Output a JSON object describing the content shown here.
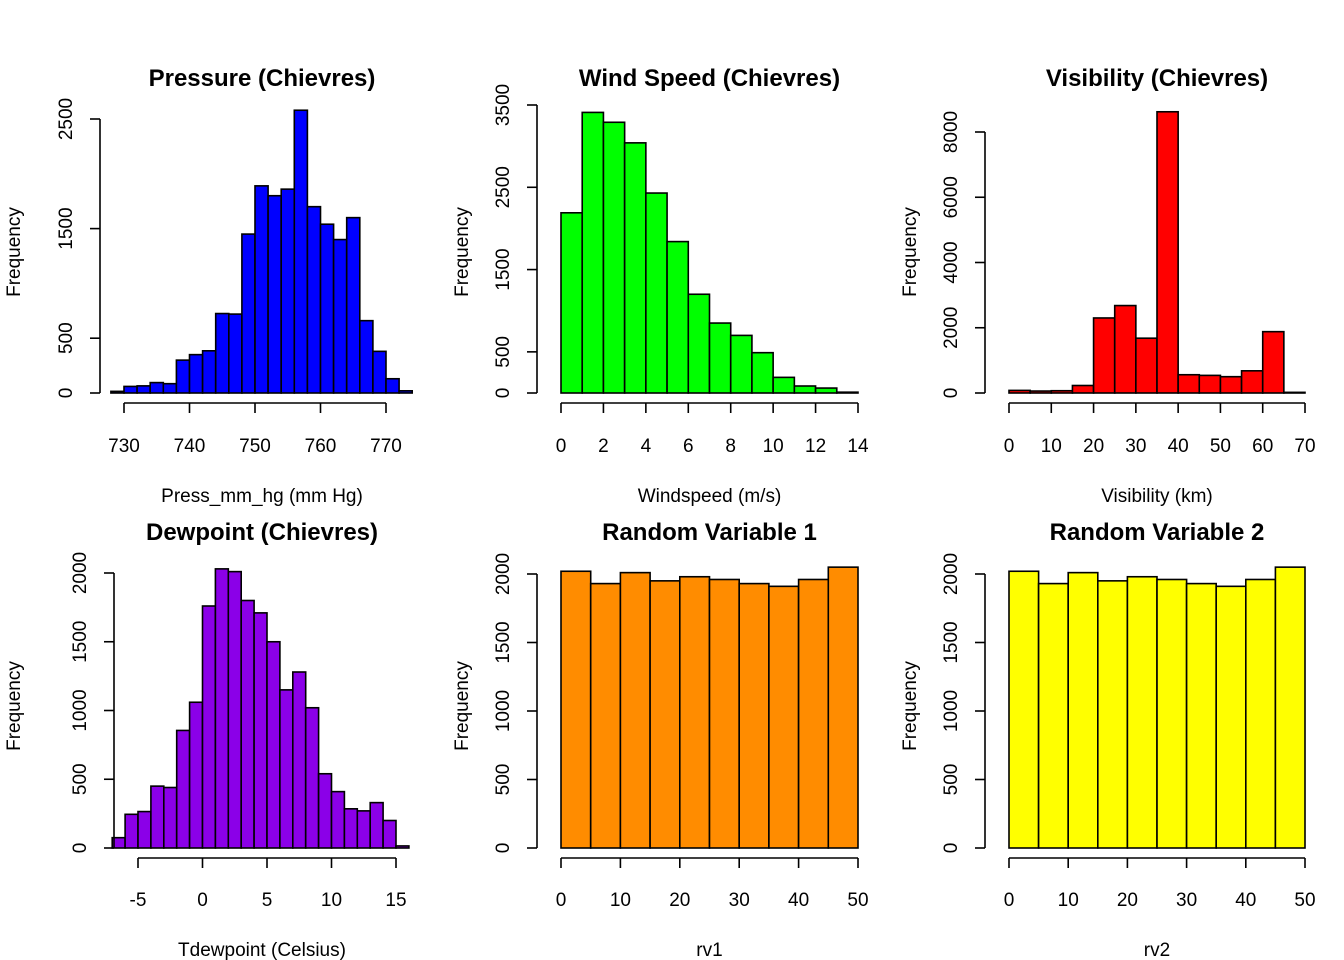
{
  "chart_data": [
    {
      "type": "bar",
      "title": "Pressure (Chievres)",
      "xlabel": "Press_mm_hg (mm Hg)",
      "ylabel": "Frequency",
      "color": "#0000ff",
      "xlim": [
        730,
        770
      ],
      "ylim": [
        0,
        2500
      ],
      "xticks": [
        730,
        740,
        750,
        760,
        770
      ],
      "yticks": [
        0,
        500,
        1500,
        2500
      ],
      "bins": [
        {
          "x0": 728,
          "x1": 730,
          "y": 15
        },
        {
          "x0": 730,
          "x1": 732,
          "y": 60
        },
        {
          "x0": 732,
          "x1": 734,
          "y": 65
        },
        {
          "x0": 734,
          "x1": 736,
          "y": 95
        },
        {
          "x0": 736,
          "x1": 738,
          "y": 85
        },
        {
          "x0": 738,
          "x1": 740,
          "y": 300
        },
        {
          "x0": 740,
          "x1": 742,
          "y": 350
        },
        {
          "x0": 742,
          "x1": 744,
          "y": 385
        },
        {
          "x0": 744,
          "x1": 746,
          "y": 725
        },
        {
          "x0": 746,
          "x1": 748,
          "y": 720
        },
        {
          "x0": 748,
          "x1": 750,
          "y": 1450
        },
        {
          "x0": 750,
          "x1": 752,
          "y": 1890
        },
        {
          "x0": 752,
          "x1": 754,
          "y": 1800
        },
        {
          "x0": 754,
          "x1": 756,
          "y": 1860
        },
        {
          "x0": 756,
          "x1": 758,
          "y": 2580
        },
        {
          "x0": 758,
          "x1": 760,
          "y": 1700
        },
        {
          "x0": 760,
          "x1": 762,
          "y": 1540
        },
        {
          "x0": 762,
          "x1": 764,
          "y": 1400
        },
        {
          "x0": 764,
          "x1": 766,
          "y": 1600
        },
        {
          "x0": 766,
          "x1": 768,
          "y": 660
        },
        {
          "x0": 768,
          "x1": 770,
          "y": 380
        },
        {
          "x0": 770,
          "x1": 772,
          "y": 130
        },
        {
          "x0": 772,
          "x1": 774,
          "y": 20
        }
      ]
    },
    {
      "type": "bar",
      "title": "Wind Speed (Chievres)",
      "xlabel": "Windspeed (m/s)",
      "ylabel": "Frequency",
      "color": "#00ff00",
      "xlim": [
        0,
        14
      ],
      "ylim": [
        0,
        3500
      ],
      "xticks": [
        0,
        2,
        4,
        6,
        8,
        10,
        12,
        14
      ],
      "yticks": [
        0,
        500,
        1500,
        2500,
        3500
      ],
      "bins": [
        {
          "x0": 0,
          "x1": 1,
          "y": 2190
        },
        {
          "x0": 1,
          "x1": 2,
          "y": 3410
        },
        {
          "x0": 2,
          "x1": 3,
          "y": 3290
        },
        {
          "x0": 3,
          "x1": 4,
          "y": 3040
        },
        {
          "x0": 4,
          "x1": 5,
          "y": 2430
        },
        {
          "x0": 5,
          "x1": 6,
          "y": 1840
        },
        {
          "x0": 6,
          "x1": 7,
          "y": 1200
        },
        {
          "x0": 7,
          "x1": 8,
          "y": 850
        },
        {
          "x0": 8,
          "x1": 9,
          "y": 700
        },
        {
          "x0": 9,
          "x1": 10,
          "y": 490
        },
        {
          "x0": 10,
          "x1": 11,
          "y": 190
        },
        {
          "x0": 11,
          "x1": 12,
          "y": 85
        },
        {
          "x0": 12,
          "x1": 13,
          "y": 60
        },
        {
          "x0": 13,
          "x1": 14,
          "y": 10
        }
      ]
    },
    {
      "type": "bar",
      "title": "Visibility (Chievres)",
      "xlabel": "Visibility (km)",
      "ylabel": "Frequency",
      "color": "#ff0000",
      "xlim": [
        0,
        70
      ],
      "ylim": [
        0,
        8000
      ],
      "xticks": [
        0,
        10,
        20,
        30,
        40,
        50,
        60,
        70
      ],
      "yticks": [
        0,
        2000,
        4000,
        6000,
        8000
      ],
      "bins": [
        {
          "x0": 0,
          "x1": 5,
          "y": 80
        },
        {
          "x0": 5,
          "x1": 10,
          "y": 60
        },
        {
          "x0": 10,
          "x1": 15,
          "y": 70
        },
        {
          "x0": 15,
          "x1": 20,
          "y": 230
        },
        {
          "x0": 20,
          "x1": 25,
          "y": 2300
        },
        {
          "x0": 25,
          "x1": 30,
          "y": 2680
        },
        {
          "x0": 30,
          "x1": 35,
          "y": 1680
        },
        {
          "x0": 35,
          "x1": 40,
          "y": 8620
        },
        {
          "x0": 40,
          "x1": 45,
          "y": 560
        },
        {
          "x0": 45,
          "x1": 50,
          "y": 540
        },
        {
          "x0": 50,
          "x1": 55,
          "y": 500
        },
        {
          "x0": 55,
          "x1": 60,
          "y": 680
        },
        {
          "x0": 60,
          "x1": 65,
          "y": 1880
        },
        {
          "x0": 65,
          "x1": 70,
          "y": 20
        }
      ]
    },
    {
      "type": "bar",
      "title": "Dewpoint (Chievres)",
      "xlabel": "Tdewpoint (Celsius)",
      "ylabel": "Frequency",
      "color": "#8b00e8",
      "xlim": [
        -5,
        15
      ],
      "ylim": [
        0,
        2000
      ],
      "xticks": [
        -5,
        0,
        5,
        10,
        15
      ],
      "yticks": [
        0,
        500,
        1000,
        1500,
        2000
      ],
      "bins": [
        {
          "x0": -7,
          "x1": -6,
          "y": 75
        },
        {
          "x0": -6,
          "x1": -5,
          "y": 245
        },
        {
          "x0": -5,
          "x1": -4,
          "y": 265
        },
        {
          "x0": -4,
          "x1": -3,
          "y": 450
        },
        {
          "x0": -3,
          "x1": -2,
          "y": 440
        },
        {
          "x0": -2,
          "x1": -1,
          "y": 855
        },
        {
          "x0": -1,
          "x1": 0,
          "y": 1060
        },
        {
          "x0": 0,
          "x1": 1,
          "y": 1760
        },
        {
          "x0": 1,
          "x1": 2,
          "y": 2030
        },
        {
          "x0": 2,
          "x1": 3,
          "y": 2010
        },
        {
          "x0": 3,
          "x1": 4,
          "y": 1800
        },
        {
          "x0": 4,
          "x1": 5,
          "y": 1710
        },
        {
          "x0": 5,
          "x1": 6,
          "y": 1500
        },
        {
          "x0": 6,
          "x1": 7,
          "y": 1150
        },
        {
          "x0": 7,
          "x1": 8,
          "y": 1280
        },
        {
          "x0": 8,
          "x1": 9,
          "y": 1020
        },
        {
          "x0": 9,
          "x1": 10,
          "y": 540
        },
        {
          "x0": 10,
          "x1": 11,
          "y": 410
        },
        {
          "x0": 11,
          "x1": 12,
          "y": 285
        },
        {
          "x0": 12,
          "x1": 13,
          "y": 270
        },
        {
          "x0": 13,
          "x1": 14,
          "y": 330
        },
        {
          "x0": 14,
          "x1": 15,
          "y": 200
        },
        {
          "x0": 15,
          "x1": 16,
          "y": 15
        }
      ]
    },
    {
      "type": "bar",
      "title": "Random Variable 1",
      "xlabel": "rv1",
      "ylabel": "Frequency",
      "color": "#ff8c00",
      "xlim": [
        0,
        50
      ],
      "ylim": [
        0,
        2000
      ],
      "xticks": [
        0,
        10,
        20,
        30,
        40,
        50
      ],
      "yticks": [
        0,
        500,
        1000,
        1500,
        2000
      ],
      "bins": [
        {
          "x0": 0,
          "x1": 5,
          "y": 2020
        },
        {
          "x0": 5,
          "x1": 10,
          "y": 1930
        },
        {
          "x0": 10,
          "x1": 15,
          "y": 2010
        },
        {
          "x0": 15,
          "x1": 20,
          "y": 1950
        },
        {
          "x0": 20,
          "x1": 25,
          "y": 1980
        },
        {
          "x0": 25,
          "x1": 30,
          "y": 1960
        },
        {
          "x0": 30,
          "x1": 35,
          "y": 1930
        },
        {
          "x0": 35,
          "x1": 40,
          "y": 1910
        },
        {
          "x0": 40,
          "x1": 45,
          "y": 1960
        },
        {
          "x0": 45,
          "x1": 50,
          "y": 2050
        }
      ]
    },
    {
      "type": "bar",
      "title": "Random Variable 2",
      "xlabel": "rv2",
      "ylabel": "Frequency",
      "color": "#ffff00",
      "xlim": [
        0,
        50
      ],
      "ylim": [
        0,
        2000
      ],
      "xticks": [
        0,
        10,
        20,
        30,
        40,
        50
      ],
      "yticks": [
        0,
        500,
        1000,
        1500,
        2000
      ],
      "bins": [
        {
          "x0": 0,
          "x1": 5,
          "y": 2020
        },
        {
          "x0": 5,
          "x1": 10,
          "y": 1930
        },
        {
          "x0": 10,
          "x1": 15,
          "y": 2010
        },
        {
          "x0": 15,
          "x1": 20,
          "y": 1950
        },
        {
          "x0": 20,
          "x1": 25,
          "y": 1980
        },
        {
          "x0": 25,
          "x1": 30,
          "y": 1960
        },
        {
          "x0": 30,
          "x1": 35,
          "y": 1930
        },
        {
          "x0": 35,
          "x1": 40,
          "y": 1910
        },
        {
          "x0": 40,
          "x1": 45,
          "y": 1960
        },
        {
          "x0": 45,
          "x1": 50,
          "y": 2050
        }
      ]
    }
  ]
}
